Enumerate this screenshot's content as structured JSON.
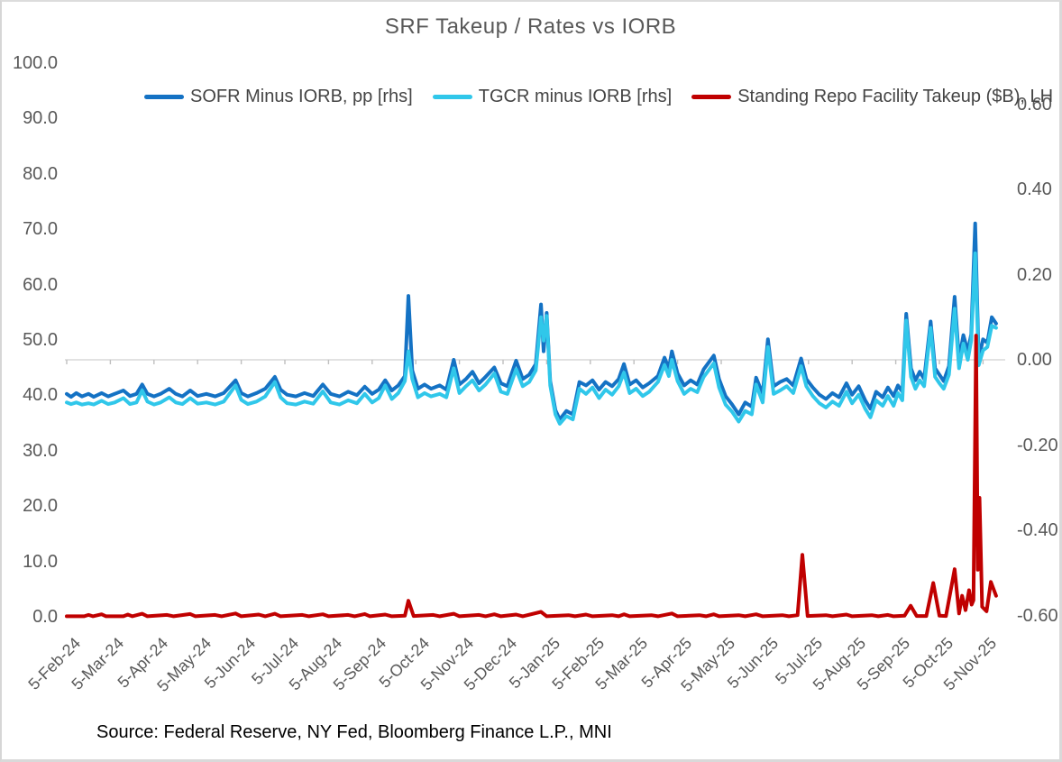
{
  "chart_data": {
    "type": "line",
    "title": "SRF Takeup / Rates vs IORB",
    "source_note": "Source: Federal Reserve, NY Fed, Bloomberg Finance L.P., MNI",
    "legend_position": "top",
    "grid": "single horizontal gridline at right-axis 0.00 with downward tick marks at each month",
    "x_axis": {
      "unit": "months since 5-Feb-24",
      "tick_labels": [
        "5-Feb-24",
        "5-Mar-24",
        "5-Apr-24",
        "5-May-24",
        "5-Jun-24",
        "5-Jul-24",
        "5-Aug-24",
        "5-Sep-24",
        "5-Oct-24",
        "5-Nov-24",
        "5-Dec-24",
        "5-Jan-25",
        "5-Feb-25",
        "5-Mar-25",
        "5-Apr-25",
        "5-May-25",
        "5-Jun-25",
        "5-Jul-25",
        "5-Aug-25",
        "5-Sep-25",
        "5-Oct-25",
        "5-Nov-25"
      ]
    },
    "left_axis": {
      "side": "left",
      "min": 0,
      "max": 100,
      "tick_labels": [
        "100.0",
        "90.0",
        "80.0",
        "70.0",
        "60.0",
        "50.0",
        "40.0",
        "30.0",
        "20.0",
        "10.0",
        "0.0"
      ],
      "tick_values": [
        100,
        90,
        80,
        70,
        60,
        50,
        40,
        30,
        20,
        10,
        0
      ]
    },
    "right_axis": {
      "side": "right",
      "min": -0.6,
      "max": 0.6,
      "tick_labels": [
        "0.60",
        "0.40",
        "0.20",
        "0.00",
        "-0.20",
        "-0.40",
        "-0.60"
      ],
      "tick_values": [
        0.6,
        0.4,
        0.2,
        0.0,
        -0.2,
        -0.4,
        -0.6
      ]
    },
    "colors": {
      "sofr_blue": "#1472C4",
      "tgcr_cyan": "#30C7EA",
      "srf_red": "#C00000",
      "text_gray": "#595959",
      "gridline_gray": "#D9D9D9",
      "tick_gray": "#BFBFBF"
    },
    "rates_x": [
      0.0,
      0.1,
      0.22,
      0.35,
      0.5,
      0.62,
      0.8,
      0.95,
      1.1,
      1.3,
      1.45,
      1.6,
      1.73,
      1.85,
      2.0,
      2.15,
      2.35,
      2.5,
      2.65,
      2.83,
      3.0,
      3.2,
      3.4,
      3.6,
      3.87,
      4.0,
      4.15,
      4.35,
      4.55,
      4.77,
      4.9,
      5.05,
      5.25,
      5.45,
      5.65,
      5.87,
      6.05,
      6.25,
      6.45,
      6.65,
      6.83,
      7.0,
      7.15,
      7.3,
      7.45,
      7.6,
      7.75,
      7.83,
      7.92,
      8.05,
      8.2,
      8.35,
      8.55,
      8.7,
      8.87,
      9.0,
      9.15,
      9.3,
      9.45,
      9.6,
      9.8,
      9.95,
      10.1,
      10.3,
      10.45,
      10.6,
      10.75,
      10.87,
      10.93,
      11.0,
      11.08,
      11.2,
      11.3,
      11.45,
      11.6,
      11.75,
      11.9,
      12.05,
      12.2,
      12.35,
      12.5,
      12.65,
      12.77,
      12.9,
      13.05,
      13.2,
      13.35,
      13.55,
      13.7,
      13.8,
      13.87,
      14.0,
      14.15,
      14.3,
      14.45,
      14.6,
      14.83,
      14.95,
      15.1,
      15.25,
      15.4,
      15.55,
      15.7,
      15.8,
      15.95,
      16.07,
      16.2,
      16.35,
      16.5,
      16.65,
      16.83,
      16.95,
      17.1,
      17.25,
      17.4,
      17.55,
      17.7,
      17.87,
      18.0,
      18.15,
      18.3,
      18.42,
      18.55,
      18.7,
      18.82,
      18.95,
      19.05,
      19.15,
      19.24,
      19.35,
      19.45,
      19.55,
      19.65,
      19.8,
      19.9,
      20.0,
      20.1,
      20.22,
      20.35,
      20.45,
      20.55,
      20.65,
      20.73,
      20.82,
      20.9,
      21.0,
      21.1,
      21.2,
      21.3
    ],
    "series": [
      {
        "name": "SOFR Minus IORB, pp [rhs]",
        "axis": "right",
        "color": "#1472C4",
        "values": [
          -0.08,
          -0.087,
          -0.078,
          -0.086,
          -0.08,
          -0.087,
          -0.078,
          -0.086,
          -0.08,
          -0.072,
          -0.085,
          -0.08,
          -0.058,
          -0.08,
          -0.086,
          -0.08,
          -0.068,
          -0.08,
          -0.086,
          -0.072,
          -0.085,
          -0.08,
          -0.086,
          -0.078,
          -0.048,
          -0.078,
          -0.086,
          -0.078,
          -0.068,
          -0.04,
          -0.07,
          -0.082,
          -0.086,
          -0.078,
          -0.085,
          -0.058,
          -0.08,
          -0.086,
          -0.075,
          -0.083,
          -0.063,
          -0.08,
          -0.07,
          -0.048,
          -0.072,
          -0.06,
          -0.038,
          0.15,
          -0.025,
          -0.068,
          -0.058,
          -0.068,
          -0.06,
          -0.07,
          0.0,
          -0.058,
          -0.045,
          -0.028,
          -0.055,
          -0.04,
          -0.018,
          -0.055,
          -0.062,
          -0.002,
          -0.045,
          -0.035,
          -0.01,
          0.13,
          0.02,
          0.11,
          -0.05,
          -0.118,
          -0.14,
          -0.12,
          -0.128,
          -0.052,
          -0.06,
          -0.048,
          -0.07,
          -0.052,
          -0.062,
          -0.045,
          -0.01,
          -0.058,
          -0.048,
          -0.065,
          -0.055,
          -0.038,
          0.005,
          -0.02,
          0.02,
          -0.032,
          -0.06,
          -0.048,
          -0.058,
          -0.022,
          0.01,
          -0.045,
          -0.085,
          -0.105,
          -0.128,
          -0.1,
          -0.11,
          -0.042,
          -0.08,
          0.048,
          -0.062,
          -0.052,
          -0.045,
          -0.06,
          0.003,
          -0.045,
          -0.065,
          -0.082,
          -0.092,
          -0.078,
          -0.088,
          -0.055,
          -0.082,
          -0.062,
          -0.095,
          -0.115,
          -0.075,
          -0.088,
          -0.065,
          -0.085,
          -0.06,
          -0.075,
          0.108,
          -0.02,
          -0.048,
          -0.028,
          -0.045,
          0.09,
          -0.02,
          -0.035,
          -0.05,
          -0.015,
          0.148,
          0.0,
          0.058,
          0.02,
          0.06,
          0.32,
          0.002,
          0.048,
          0.04,
          0.1,
          0.085
        ]
      },
      {
        "name": "TGCR minus IORB [rhs]",
        "axis": "right",
        "color": "#30C7EA",
        "values": [
          -0.1,
          -0.104,
          -0.1,
          -0.105,
          -0.102,
          -0.105,
          -0.096,
          -0.104,
          -0.1,
          -0.09,
          -0.104,
          -0.1,
          -0.072,
          -0.098,
          -0.105,
          -0.1,
          -0.088,
          -0.1,
          -0.104,
          -0.09,
          -0.103,
          -0.1,
          -0.105,
          -0.098,
          -0.06,
          -0.094,
          -0.104,
          -0.098,
          -0.086,
          -0.052,
          -0.088,
          -0.102,
          -0.105,
          -0.098,
          -0.103,
          -0.074,
          -0.1,
          -0.105,
          -0.095,
          -0.102,
          -0.08,
          -0.1,
          -0.09,
          -0.06,
          -0.092,
          -0.078,
          -0.05,
          0.02,
          -0.045,
          -0.088,
          -0.078,
          -0.086,
          -0.08,
          -0.088,
          -0.02,
          -0.078,
          -0.062,
          -0.048,
          -0.072,
          -0.058,
          -0.032,
          -0.075,
          -0.08,
          -0.022,
          -0.062,
          -0.052,
          -0.025,
          0.1,
          0.045,
          0.103,
          -0.06,
          -0.128,
          -0.15,
          -0.132,
          -0.14,
          -0.068,
          -0.08,
          -0.065,
          -0.09,
          -0.07,
          -0.082,
          -0.062,
          -0.03,
          -0.078,
          -0.068,
          -0.085,
          -0.075,
          -0.052,
          -0.012,
          -0.038,
          0.0,
          -0.05,
          -0.08,
          -0.068,
          -0.076,
          -0.04,
          -0.008,
          -0.065,
          -0.105,
          -0.122,
          -0.145,
          -0.12,
          -0.128,
          -0.058,
          -0.1,
          0.03,
          -0.08,
          -0.072,
          -0.062,
          -0.078,
          -0.015,
          -0.062,
          -0.085,
          -0.102,
          -0.112,
          -0.098,
          -0.108,
          -0.075,
          -0.102,
          -0.082,
          -0.115,
          -0.135,
          -0.095,
          -0.108,
          -0.085,
          -0.108,
          -0.078,
          -0.095,
          0.092,
          -0.04,
          -0.068,
          -0.048,
          -0.062,
          0.075,
          -0.04,
          -0.055,
          -0.068,
          -0.035,
          0.12,
          -0.02,
          0.038,
          0.0,
          0.045,
          0.25,
          -0.013,
          0.022,
          0.03,
          0.08,
          0.075
        ]
      },
      {
        "name": "Standing Repo Facility Takeup ($B), LH",
        "axis": "left",
        "color": "#C00000",
        "points": [
          [
            0.0,
            0.1
          ],
          [
            0.4,
            0.1
          ],
          [
            0.5,
            0.35
          ],
          [
            0.6,
            0.1
          ],
          [
            0.8,
            0.45
          ],
          [
            0.9,
            0.1
          ],
          [
            1.3,
            0.1
          ],
          [
            1.4,
            0.4
          ],
          [
            1.5,
            0.1
          ],
          [
            1.73,
            0.55
          ],
          [
            1.85,
            0.1
          ],
          [
            2.3,
            0.35
          ],
          [
            2.45,
            0.1
          ],
          [
            2.83,
            0.5
          ],
          [
            2.95,
            0.1
          ],
          [
            3.4,
            0.35
          ],
          [
            3.55,
            0.1
          ],
          [
            3.87,
            0.6
          ],
          [
            4.0,
            0.1
          ],
          [
            4.4,
            0.4
          ],
          [
            4.55,
            0.1
          ],
          [
            4.77,
            0.55
          ],
          [
            4.9,
            0.1
          ],
          [
            5.4,
            0.35
          ],
          [
            5.55,
            0.1
          ],
          [
            5.87,
            0.45
          ],
          [
            6.0,
            0.1
          ],
          [
            6.45,
            0.35
          ],
          [
            6.6,
            0.1
          ],
          [
            6.83,
            0.5
          ],
          [
            6.95,
            0.1
          ],
          [
            7.3,
            0.4
          ],
          [
            7.45,
            0.1
          ],
          [
            7.75,
            0.2
          ],
          [
            7.83,
            2.9
          ],
          [
            7.95,
            0.15
          ],
          [
            8.4,
            0.35
          ],
          [
            8.55,
            0.1
          ],
          [
            8.87,
            0.55
          ],
          [
            9.0,
            0.1
          ],
          [
            9.45,
            0.35
          ],
          [
            9.6,
            0.1
          ],
          [
            9.8,
            0.45
          ],
          [
            9.95,
            0.1
          ],
          [
            10.3,
            0.4
          ],
          [
            10.45,
            0.1
          ],
          [
            10.87,
            0.9
          ],
          [
            11.0,
            0.1
          ],
          [
            11.5,
            0.3
          ],
          [
            11.65,
            0.1
          ],
          [
            11.9,
            0.4
          ],
          [
            12.05,
            0.1
          ],
          [
            12.5,
            0.3
          ],
          [
            12.65,
            0.1
          ],
          [
            12.77,
            0.45
          ],
          [
            12.9,
            0.1
          ],
          [
            13.4,
            0.3
          ],
          [
            13.55,
            0.1
          ],
          [
            13.87,
            0.6
          ],
          [
            14.0,
            0.1
          ],
          [
            14.5,
            0.3
          ],
          [
            14.65,
            0.1
          ],
          [
            14.83,
            0.45
          ],
          [
            14.95,
            0.1
          ],
          [
            15.4,
            0.3
          ],
          [
            15.55,
            0.1
          ],
          [
            15.8,
            0.45
          ],
          [
            15.95,
            0.1
          ],
          [
            16.4,
            0.3
          ],
          [
            16.55,
            0.1
          ],
          [
            16.75,
            0.3
          ],
          [
            16.86,
            11.2
          ],
          [
            16.98,
            0.15
          ],
          [
            17.4,
            0.3
          ],
          [
            17.55,
            0.1
          ],
          [
            17.87,
            0.4
          ],
          [
            18.0,
            0.1
          ],
          [
            18.45,
            0.3
          ],
          [
            18.6,
            0.1
          ],
          [
            18.82,
            0.35
          ],
          [
            18.95,
            0.1
          ],
          [
            19.2,
            0.2
          ],
          [
            19.34,
            2.0
          ],
          [
            19.48,
            0.15
          ],
          [
            19.7,
            0.15
          ],
          [
            19.86,
            6.1
          ],
          [
            20.0,
            0.2
          ],
          [
            20.15,
            0.15
          ],
          [
            20.35,
            8.6
          ],
          [
            20.45,
            0.6
          ],
          [
            20.52,
            3.8
          ],
          [
            20.6,
            1.2
          ],
          [
            20.68,
            4.8
          ],
          [
            20.74,
            2.2
          ],
          [
            20.78,
            3.0
          ],
          [
            20.84,
            50.8
          ],
          [
            20.88,
            8.5
          ],
          [
            20.92,
            21.5
          ],
          [
            20.98,
            1.8
          ],
          [
            21.08,
            1.0
          ],
          [
            21.18,
            6.3
          ],
          [
            21.3,
            3.8
          ]
        ]
      }
    ]
  }
}
